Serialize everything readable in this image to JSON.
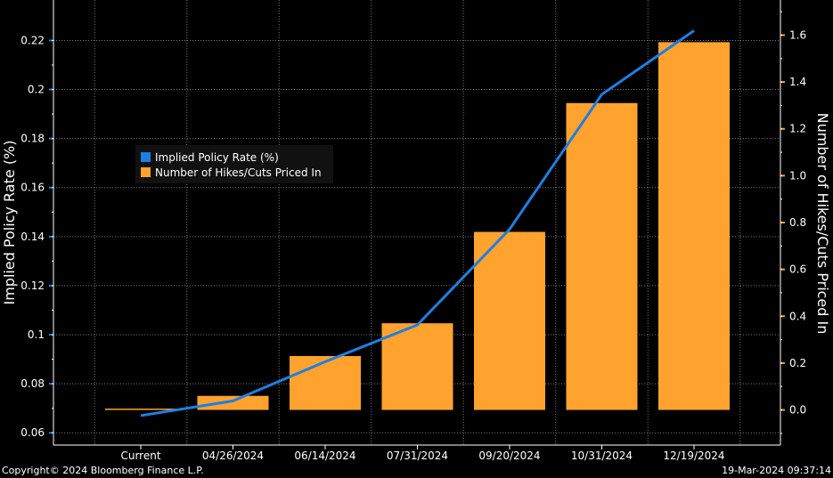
{
  "chart_data": {
    "type": "bar",
    "categories": [
      "Current",
      "04/26/2024",
      "06/14/2024",
      "07/31/2024",
      "09/20/2024",
      "10/31/2024",
      "12/19/2024"
    ],
    "series": [
      {
        "name": "Implied Policy Rate (%)",
        "type": "line",
        "axis": "left",
        "color": "#1E7FE3",
        "values": [
          0.067,
          0.073,
          0.089,
          0.104,
          0.143,
          0.198,
          0.224
        ]
      },
      {
        "name": "Number of Hikes/Cuts Priced In",
        "type": "bar",
        "axis": "right",
        "color": "#FFA22E",
        "values": [
          0.0,
          0.06,
          0.23,
          0.37,
          0.76,
          1.31,
          1.57
        ]
      }
    ],
    "left_axis": {
      "label": "Implied Policy Rate (%)",
      "ylim": [
        0.055,
        0.2365
      ],
      "ticks": [
        "0.06",
        "0.08",
        "0.1",
        "0.12",
        "0.14",
        "0.16",
        "0.18",
        "0.2",
        "0.22"
      ]
    },
    "right_axis": {
      "label": "Number of Hikes/Cuts Priced In",
      "ylim": [
        -0.15,
        1.75
      ],
      "ticks": [
        "0.0",
        "0.2",
        "0.4",
        "0.6",
        "0.8",
        "1.0",
        "1.2",
        "1.4",
        "1.6"
      ]
    },
    "grid": true,
    "legend_position": "upper-left"
  },
  "footer": {
    "copyright": "Copyright© 2024 Bloomberg Finance L.P.",
    "timestamp": "19-Mar-2024 09:37:14"
  },
  "colors": {
    "background": "#000000",
    "grid": "#7a7a7a",
    "axis": "#ffffff"
  }
}
